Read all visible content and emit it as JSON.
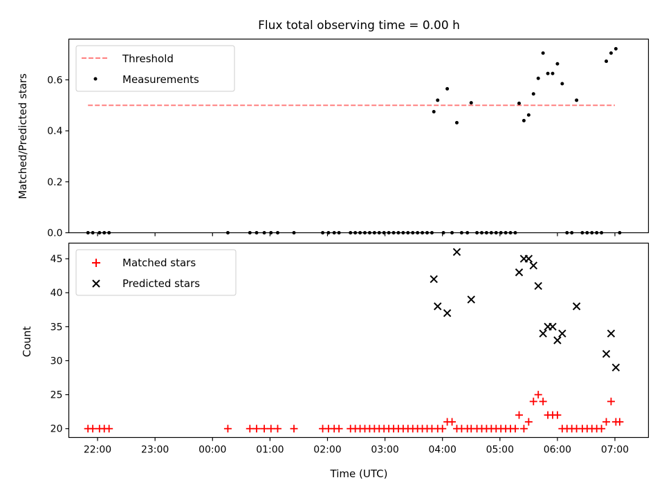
{
  "chart_data": [
    {
      "type": "scatter",
      "title": "Flux total observing time = 0.00 h",
      "xlabel": "",
      "ylabel": "Matched/Predicted stars",
      "ylim": [
        0,
        0.76
      ],
      "yticks": [
        "0.0",
        "0.2",
        "0.4",
        "0.6"
      ],
      "yticks_values": [
        0,
        0.2,
        0.4,
        0.6
      ],
      "xlim": [
        "21:30",
        "07:35"
      ],
      "legend_position": "top-left",
      "threshold": {
        "name": "Threshold",
        "value": 0.5,
        "x_start": "21:50",
        "x_end": "07:00",
        "color": "#ff7f7f"
      },
      "series": [
        {
          "name": "Measurements",
          "color": "#000000",
          "points": [
            [
              "21:50",
              0
            ],
            [
              "21:55",
              0
            ],
            [
              "22:02",
              0
            ],
            [
              "22:07",
              0
            ],
            [
              "22:12",
              0
            ],
            [
              "00:16",
              0
            ],
            [
              "00:39",
              0
            ],
            [
              "00:46",
              0
            ],
            [
              "00:54",
              0
            ],
            [
              "01:01",
              0
            ],
            [
              "01:08",
              0
            ],
            [
              "01:25",
              0
            ],
            [
              "01:55",
              0
            ],
            [
              "02:01",
              0
            ],
            [
              "02:07",
              0
            ],
            [
              "02:12",
              0
            ],
            [
              "02:24",
              0
            ],
            [
              "02:29",
              0
            ],
            [
              "02:34",
              0
            ],
            [
              "02:39",
              0
            ],
            [
              "02:44",
              0
            ],
            [
              "02:49",
              0
            ],
            [
              "02:54",
              0
            ],
            [
              "02:59",
              0
            ],
            [
              "03:04",
              0
            ],
            [
              "03:09",
              0
            ],
            [
              "03:14",
              0
            ],
            [
              "03:19",
              0
            ],
            [
              "03:24",
              0
            ],
            [
              "03:29",
              0
            ],
            [
              "03:34",
              0
            ],
            [
              "03:39",
              0
            ],
            [
              "03:44",
              0
            ],
            [
              "03:49",
              0
            ],
            [
              "03:51",
              0.475
            ],
            [
              "03:55",
              0.52
            ],
            [
              "04:01",
              0
            ],
            [
              "04:05",
              0.565
            ],
            [
              "04:10",
              0
            ],
            [
              "04:15",
              0.432
            ],
            [
              "04:20",
              0
            ],
            [
              "04:26",
              0
            ],
            [
              "04:30",
              0.51
            ],
            [
              "04:36",
              0
            ],
            [
              "04:41",
              0
            ],
            [
              "04:46",
              0
            ],
            [
              "04:51",
              0
            ],
            [
              "04:56",
              0
            ],
            [
              "05:01",
              0
            ],
            [
              "05:06",
              0
            ],
            [
              "05:11",
              0
            ],
            [
              "05:16",
              0
            ],
            [
              "05:20",
              0.508
            ],
            [
              "05:25",
              0.44
            ],
            [
              "05:30",
              0.462
            ],
            [
              "05:35",
              0.545
            ],
            [
              "05:40",
              0.606
            ],
            [
              "05:45",
              0.705
            ],
            [
              "05:50",
              0.625
            ],
            [
              "05:55",
              0.625
            ],
            [
              "06:00",
              0.663
            ],
            [
              "06:05",
              0.585
            ],
            [
              "06:10",
              0
            ],
            [
              "06:15",
              0
            ],
            [
              "06:20",
              0.52
            ],
            [
              "06:26",
              0
            ],
            [
              "06:31",
              0
            ],
            [
              "06:36",
              0
            ],
            [
              "06:41",
              0
            ],
            [
              "06:46",
              0
            ],
            [
              "06:51",
              0.673
            ],
            [
              "06:56",
              0.705
            ],
            [
              "07:01",
              0.722
            ],
            [
              "07:05",
              0
            ]
          ]
        }
      ]
    },
    {
      "type": "scatter",
      "title": "",
      "xlabel": "Time (UTC)",
      "ylabel": "Count",
      "ylim": [
        18.7,
        47.3
      ],
      "yticks": [
        "20",
        "25",
        "30",
        "35",
        "40",
        "45"
      ],
      "yticks_values": [
        20,
        25,
        30,
        35,
        40,
        45
      ],
      "xlim": [
        "21:30",
        "07:35"
      ],
      "xticks": [
        "22:00",
        "23:00",
        "00:00",
        "01:00",
        "02:00",
        "03:00",
        "04:00",
        "05:00",
        "06:00",
        "07:00"
      ],
      "legend_position": "top-left",
      "series": [
        {
          "name": "Matched stars",
          "marker": "plus",
          "color": "#ff0000",
          "points": [
            [
              "21:50",
              20
            ],
            [
              "21:55",
              20
            ],
            [
              "22:02",
              20
            ],
            [
              "22:07",
              20
            ],
            [
              "22:12",
              20
            ],
            [
              "00:16",
              20
            ],
            [
              "00:39",
              20
            ],
            [
              "00:46",
              20
            ],
            [
              "00:54",
              20
            ],
            [
              "01:01",
              20
            ],
            [
              "01:08",
              20
            ],
            [
              "01:25",
              20
            ],
            [
              "01:55",
              20
            ],
            [
              "02:01",
              20
            ],
            [
              "02:07",
              20
            ],
            [
              "02:12",
              20
            ],
            [
              "02:24",
              20
            ],
            [
              "02:29",
              20
            ],
            [
              "02:34",
              20
            ],
            [
              "02:39",
              20
            ],
            [
              "02:44",
              20
            ],
            [
              "02:49",
              20
            ],
            [
              "02:54",
              20
            ],
            [
              "02:59",
              20
            ],
            [
              "03:04",
              20
            ],
            [
              "03:09",
              20
            ],
            [
              "03:14",
              20
            ],
            [
              "03:19",
              20
            ],
            [
              "03:24",
              20
            ],
            [
              "03:29",
              20
            ],
            [
              "03:34",
              20
            ],
            [
              "03:39",
              20
            ],
            [
              "03:44",
              20
            ],
            [
              "03:49",
              20
            ],
            [
              "03:55",
              20
            ],
            [
              "04:00",
              20
            ],
            [
              "04:05",
              21
            ],
            [
              "04:10",
              21
            ],
            [
              "04:15",
              20
            ],
            [
              "04:20",
              20
            ],
            [
              "04:26",
              20
            ],
            [
              "04:30",
              20
            ],
            [
              "04:36",
              20
            ],
            [
              "04:41",
              20
            ],
            [
              "04:46",
              20
            ],
            [
              "04:51",
              20
            ],
            [
              "04:56",
              20
            ],
            [
              "05:01",
              20
            ],
            [
              "05:06",
              20
            ],
            [
              "05:11",
              20
            ],
            [
              "05:16",
              20
            ],
            [
              "05:20",
              22
            ],
            [
              "05:25",
              20
            ],
            [
              "05:30",
              21
            ],
            [
              "05:35",
              24
            ],
            [
              "05:40",
              25
            ],
            [
              "05:45",
              24
            ],
            [
              "05:50",
              22
            ],
            [
              "05:55",
              22
            ],
            [
              "06:00",
              22
            ],
            [
              "06:05",
              20
            ],
            [
              "06:10",
              20
            ],
            [
              "06:15",
              20
            ],
            [
              "06:20",
              20
            ],
            [
              "06:26",
              20
            ],
            [
              "06:31",
              20
            ],
            [
              "06:36",
              20
            ],
            [
              "06:41",
              20
            ],
            [
              "06:46",
              20
            ],
            [
              "06:51",
              21
            ],
            [
              "06:56",
              24
            ],
            [
              "07:01",
              21
            ],
            [
              "07:05",
              21
            ]
          ]
        },
        {
          "name": "Predicted stars",
          "marker": "x",
          "color": "#000000",
          "points": [
            [
              "03:51",
              42
            ],
            [
              "03:55",
              38
            ],
            [
              "04:05",
              37
            ],
            [
              "04:15",
              46
            ],
            [
              "04:30",
              39
            ],
            [
              "05:20",
              43
            ],
            [
              "05:25",
              45
            ],
            [
              "05:30",
              45
            ],
            [
              "05:35",
              44
            ],
            [
              "05:40",
              41
            ],
            [
              "05:45",
              34
            ],
            [
              "05:50",
              35
            ],
            [
              "05:55",
              35
            ],
            [
              "06:00",
              33
            ],
            [
              "06:05",
              34
            ],
            [
              "06:20",
              38
            ],
            [
              "06:51",
              31
            ],
            [
              "06:56",
              34
            ],
            [
              "07:01",
              29
            ]
          ]
        }
      ]
    }
  ]
}
